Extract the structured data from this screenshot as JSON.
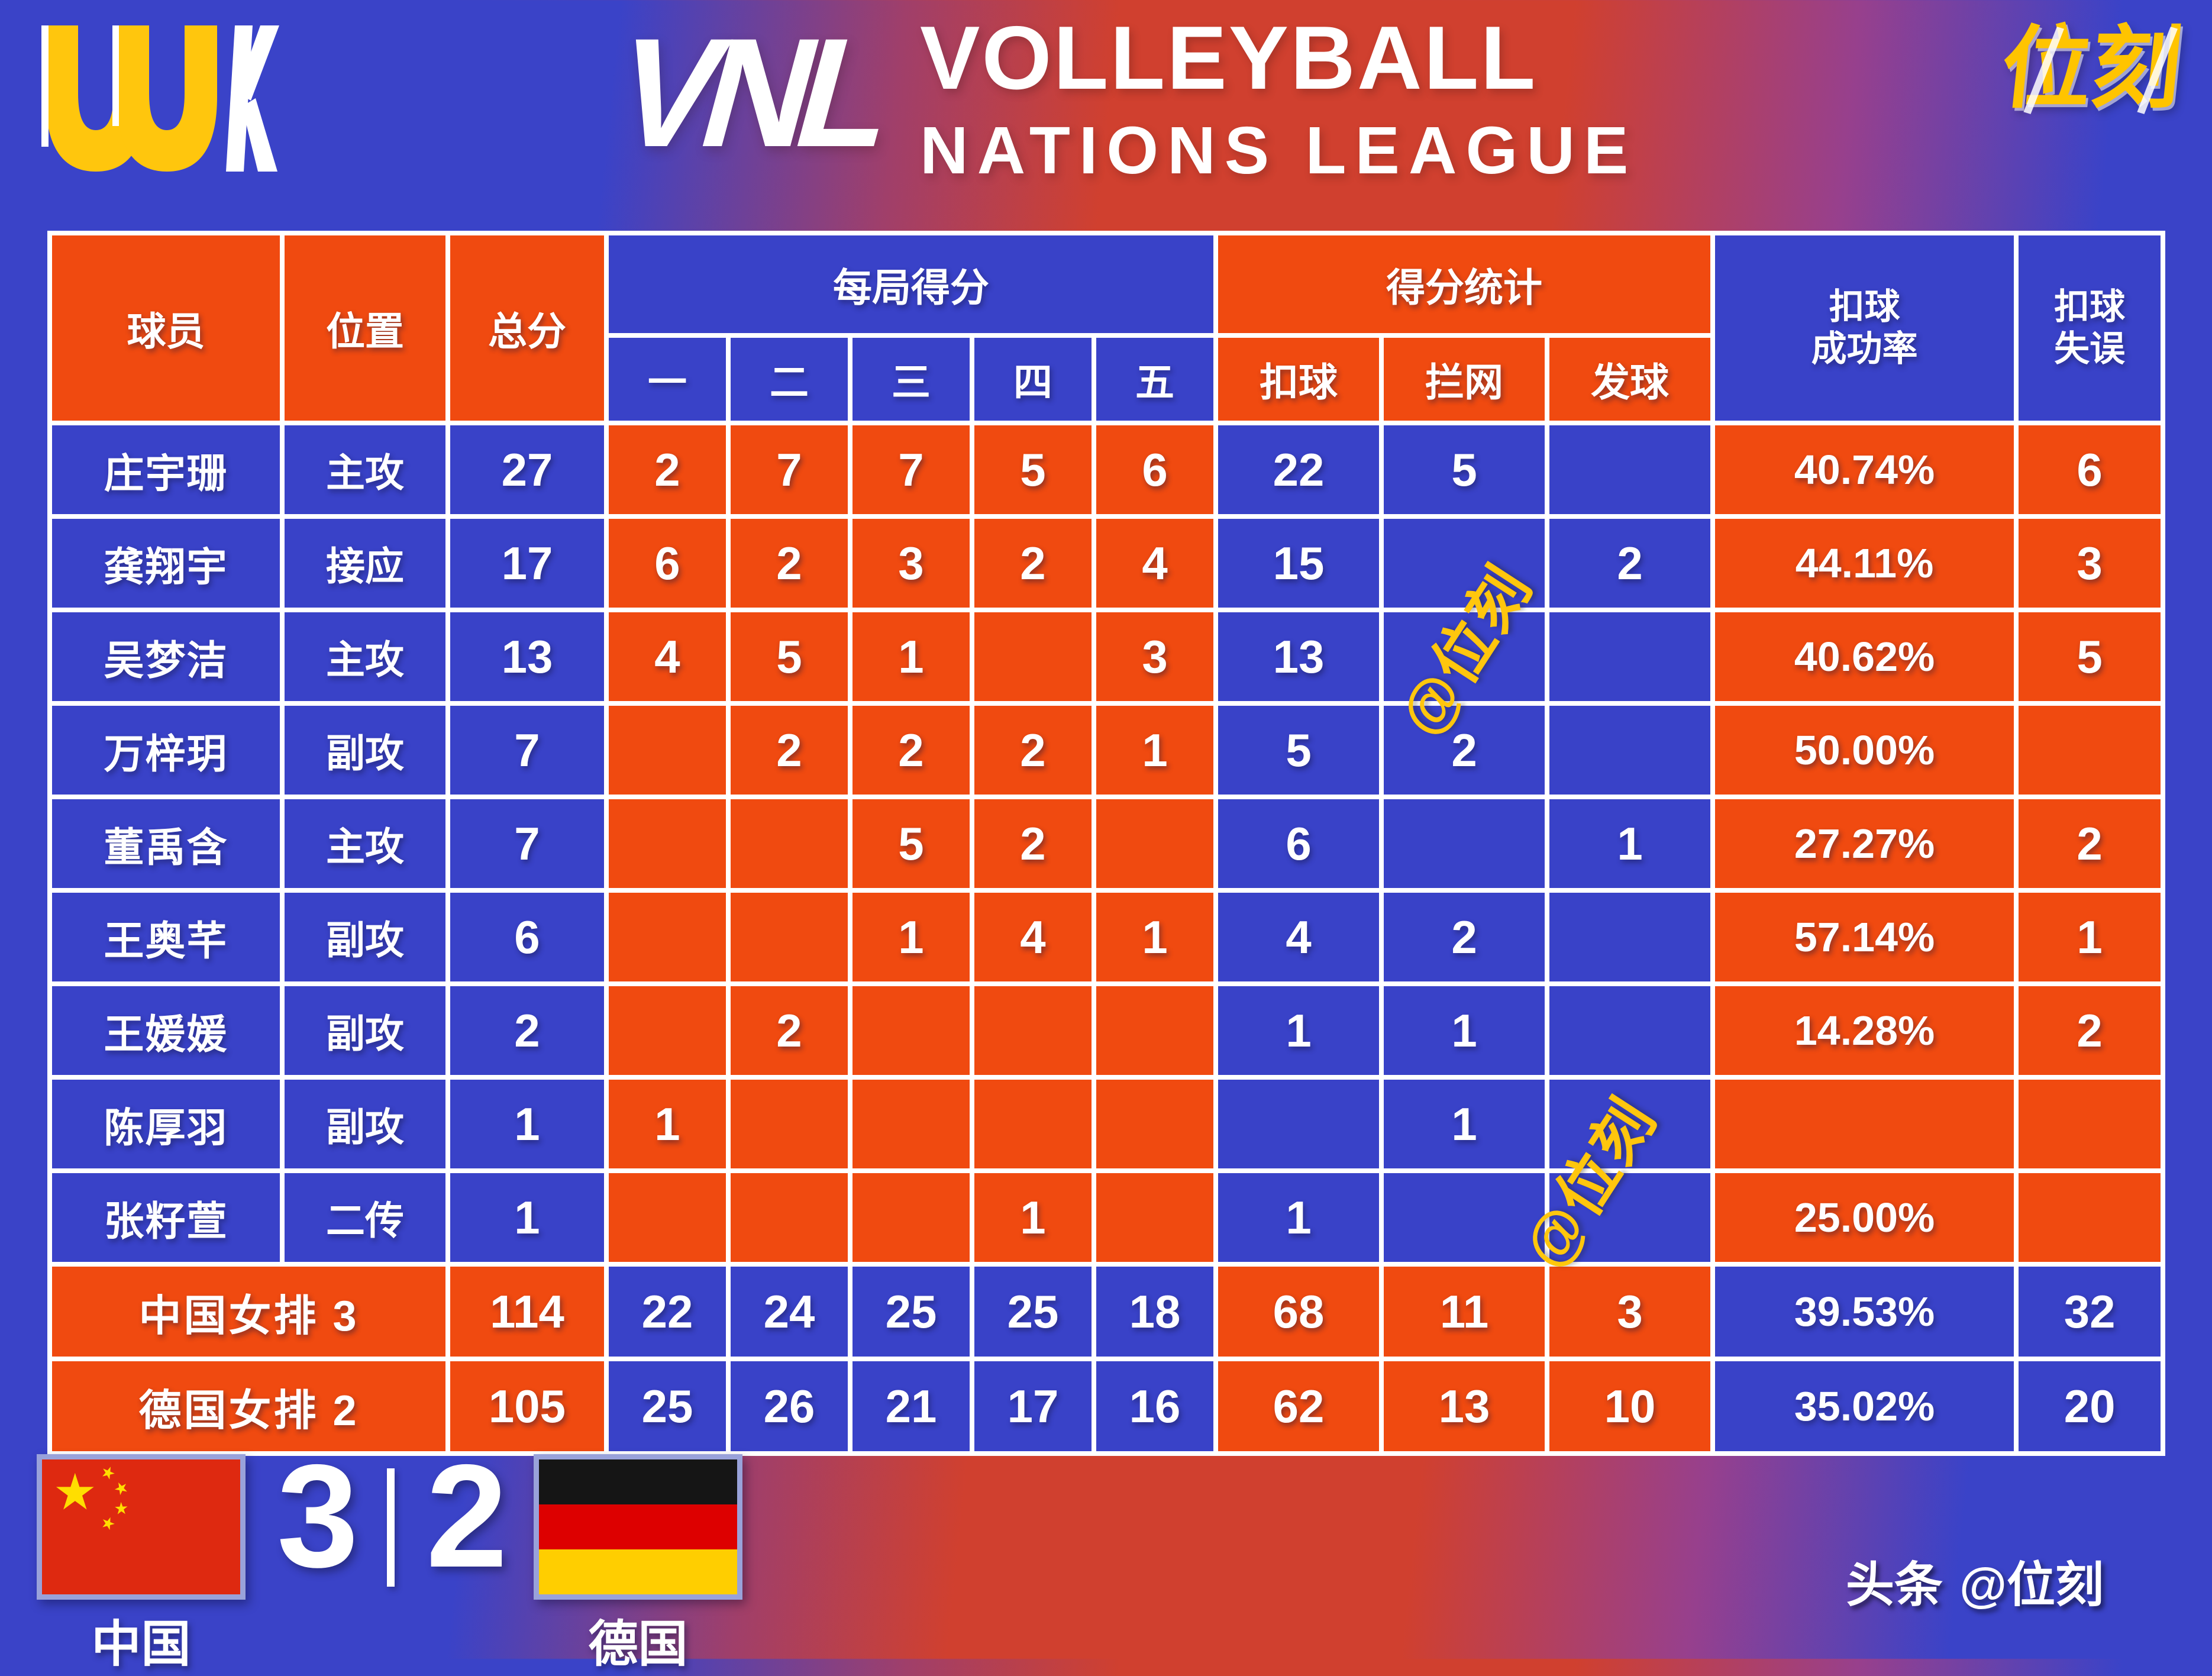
{
  "logos": {
    "uuk_label": "UUK",
    "vnl_mark": "VNL",
    "vnl_title_line1": "VOLLEYBALL",
    "vnl_title_line2": "NATIONS LEAGUE",
    "brand": "位刻"
  },
  "chart_data": {
    "type": "table",
    "header": {
      "player": "球员",
      "position": "位置",
      "total": "总分",
      "sets_group": "每局得分",
      "sets": [
        "一",
        "二",
        "三",
        "四",
        "五"
      ],
      "stats_group": "得分统计",
      "stats": [
        "扣球",
        "拦网",
        "发球"
      ],
      "spike_rate": "扣球\n成功率",
      "spike_errors": "扣球\n失误"
    },
    "players": [
      {
        "name": "庄宇珊",
        "position": "主攻",
        "total": "27",
        "sets": [
          "2",
          "7",
          "7",
          "5",
          "6"
        ],
        "spike": "22",
        "block": "5",
        "serve": "",
        "rate": "40.74%",
        "errors": "6"
      },
      {
        "name": "龚翔宇",
        "position": "接应",
        "total": "17",
        "sets": [
          "6",
          "2",
          "3",
          "2",
          "4"
        ],
        "spike": "15",
        "block": "",
        "serve": "2",
        "rate": "44.11%",
        "errors": "3"
      },
      {
        "name": "吴梦洁",
        "position": "主攻",
        "total": "13",
        "sets": [
          "4",
          "5",
          "1",
          "",
          "3"
        ],
        "spike": "13",
        "block": "",
        "serve": "",
        "rate": "40.62%",
        "errors": "5"
      },
      {
        "name": "万梓玥",
        "position": "副攻",
        "total": "7",
        "sets": [
          "",
          "2",
          "2",
          "2",
          "1"
        ],
        "spike": "5",
        "block": "2",
        "serve": "",
        "rate": "50.00%",
        "errors": ""
      },
      {
        "name": "董禹含",
        "position": "主攻",
        "total": "7",
        "sets": [
          "",
          "",
          "5",
          "2",
          ""
        ],
        "spike": "6",
        "block": "",
        "serve": "1",
        "rate": "27.27%",
        "errors": "2"
      },
      {
        "name": "王奥芊",
        "position": "副攻",
        "total": "6",
        "sets": [
          "",
          "",
          "1",
          "4",
          "1"
        ],
        "spike": "4",
        "block": "2",
        "serve": "",
        "rate": "57.14%",
        "errors": "1"
      },
      {
        "name": "王媛媛",
        "position": "副攻",
        "total": "2",
        "sets": [
          "",
          "2",
          "",
          "",
          ""
        ],
        "spike": "1",
        "block": "1",
        "serve": "",
        "rate": "14.28%",
        "errors": "2"
      },
      {
        "name": "陈厚羽",
        "position": "副攻",
        "total": "1",
        "sets": [
          "1",
          "",
          "",
          "",
          ""
        ],
        "spike": "",
        "block": "1",
        "serve": "",
        "rate": "",
        "errors": ""
      },
      {
        "name": "张籽萱",
        "position": "二传",
        "total": "1",
        "sets": [
          "",
          "",
          "",
          "1",
          ""
        ],
        "spike": "1",
        "block": "",
        "serve": "",
        "rate": "25.00%",
        "errors": ""
      }
    ],
    "teams": [
      {
        "name": "中国女排 3",
        "total": "114",
        "sets": [
          "22",
          "24",
          "25",
          "25",
          "18"
        ],
        "spike": "68",
        "block": "11",
        "serve": "3",
        "rate": "39.53%",
        "errors": "32"
      },
      {
        "name": "德国女排 2",
        "total": "105",
        "sets": [
          "25",
          "26",
          "21",
          "17",
          "16"
        ],
        "spike": "62",
        "block": "13",
        "serve": "10",
        "rate": "35.02%",
        "errors": "20"
      }
    ]
  },
  "watermarks": {
    "w1": "@位刻",
    "w2": "@位刻"
  },
  "scoreboard": {
    "home_label": "中国",
    "home_score": "3",
    "away_label": "德国",
    "away_score": "2"
  },
  "credit": {
    "prefix": "头条",
    "handle": "@位刻"
  },
  "colors": {
    "table_blue": "#3942c8",
    "table_orange": "#f04a10",
    "accent_yellow": "#ffc60d",
    "bg_blue": "#3a43c8",
    "bg_red": "#d0402f",
    "china_flag_red": "#de2910",
    "china_star_yellow": "#ffde00",
    "germany_black": "#151515",
    "germany_red": "#dd0000",
    "germany_gold": "#ffce00"
  }
}
